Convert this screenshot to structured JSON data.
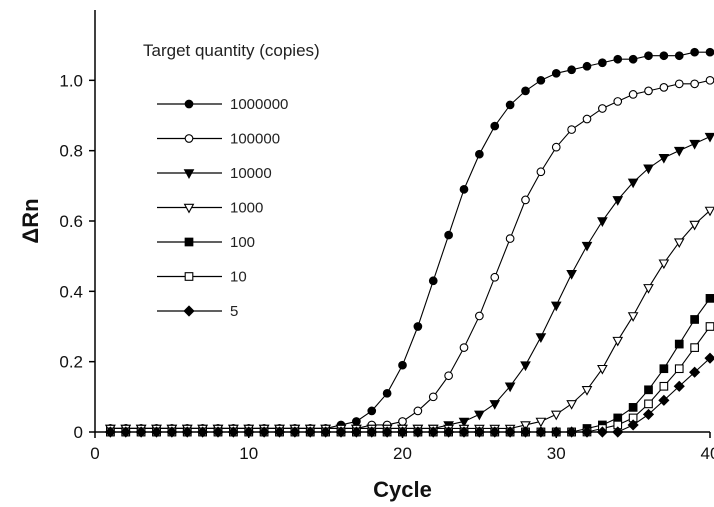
{
  "chart_data": {
    "type": "line",
    "title": "",
    "xlabel": "Cycle",
    "ylabel": "ΔRn",
    "xlim": [
      0,
      40
    ],
    "ylim": [
      0,
      1.2
    ],
    "x_ticks": [
      0,
      10,
      20,
      30,
      40
    ],
    "y_ticks": [
      0,
      0.2,
      0.4,
      0.6,
      0.8,
      1.0
    ],
    "x_tick_labels": [
      "0",
      "10",
      "20",
      "30",
      "40"
    ],
    "y_tick_labels": [
      "0",
      "0.2",
      "0.4",
      "0.6",
      "0.8",
      "1.0"
    ],
    "grid": false,
    "legend": {
      "title": "Target quantity (copies)",
      "placement": "top-left"
    },
    "x": [
      1,
      2,
      3,
      4,
      5,
      6,
      7,
      8,
      9,
      10,
      11,
      12,
      13,
      14,
      15,
      16,
      17,
      18,
      19,
      20,
      21,
      22,
      23,
      24,
      25,
      26,
      27,
      28,
      29,
      30,
      31,
      32,
      33,
      34,
      35,
      36,
      37,
      38,
      39,
      40
    ],
    "series": [
      {
        "name": "1000000",
        "marker": "circle-filled",
        "values": [
          0.01,
          0.01,
          0.01,
          0.01,
          0.01,
          0.01,
          0.01,
          0.01,
          0.01,
          0.01,
          0.01,
          0.01,
          0.01,
          0.01,
          0.01,
          0.02,
          0.03,
          0.06,
          0.11,
          0.19,
          0.3,
          0.43,
          0.56,
          0.69,
          0.79,
          0.87,
          0.93,
          0.97,
          1.0,
          1.02,
          1.03,
          1.04,
          1.05,
          1.06,
          1.06,
          1.07,
          1.07,
          1.07,
          1.08,
          1.08
        ]
      },
      {
        "name": "100000",
        "marker": "circle-open",
        "values": [
          0.01,
          0.01,
          0.01,
          0.01,
          0.01,
          0.01,
          0.01,
          0.01,
          0.01,
          0.01,
          0.01,
          0.01,
          0.01,
          0.01,
          0.01,
          0.01,
          0.01,
          0.02,
          0.02,
          0.03,
          0.06,
          0.1,
          0.16,
          0.24,
          0.33,
          0.44,
          0.55,
          0.66,
          0.74,
          0.81,
          0.86,
          0.89,
          0.92,
          0.94,
          0.96,
          0.97,
          0.98,
          0.99,
          0.99,
          1.0
        ]
      },
      {
        "name": "10000",
        "marker": "triangle-down-filled",
        "values": [
          0.01,
          0.01,
          0.01,
          0.01,
          0.01,
          0.01,
          0.01,
          0.01,
          0.01,
          0.01,
          0.01,
          0.01,
          0.01,
          0.01,
          0.01,
          0.01,
          0.01,
          0.01,
          0.01,
          0.01,
          0.01,
          0.01,
          0.02,
          0.03,
          0.05,
          0.08,
          0.13,
          0.19,
          0.27,
          0.36,
          0.45,
          0.53,
          0.6,
          0.66,
          0.71,
          0.75,
          0.78,
          0.8,
          0.82,
          0.84
        ]
      },
      {
        "name": "1000",
        "marker": "triangle-down-open",
        "values": [
          0.01,
          0.01,
          0.01,
          0.01,
          0.01,
          0.01,
          0.01,
          0.01,
          0.01,
          0.01,
          0.01,
          0.01,
          0.01,
          0.01,
          0.01,
          0.01,
          0.01,
          0.01,
          0.01,
          0.01,
          0.01,
          0.01,
          0.01,
          0.01,
          0.01,
          0.01,
          0.01,
          0.02,
          0.03,
          0.05,
          0.08,
          0.12,
          0.18,
          0.26,
          0.33,
          0.41,
          0.48,
          0.54,
          0.59,
          0.63
        ]
      },
      {
        "name": "100",
        "marker": "square-filled",
        "values": [
          0.0,
          0.0,
          0.0,
          0.0,
          0.0,
          0.0,
          0.0,
          0.0,
          0.0,
          0.0,
          0.0,
          0.0,
          0.0,
          0.0,
          0.0,
          0.0,
          0.0,
          0.0,
          0.0,
          0.0,
          0.0,
          0.0,
          0.0,
          0.0,
          0.0,
          0.0,
          0.0,
          0.0,
          0.0,
          0.0,
          0.0,
          0.01,
          0.02,
          0.04,
          0.07,
          0.12,
          0.18,
          0.25,
          0.32,
          0.38
        ]
      },
      {
        "name": "10",
        "marker": "square-open",
        "values": [
          0.0,
          0.0,
          0.0,
          0.0,
          0.0,
          0.0,
          0.0,
          0.0,
          0.0,
          0.0,
          0.0,
          0.0,
          0.0,
          0.0,
          0.0,
          0.0,
          0.0,
          0.0,
          0.0,
          0.0,
          0.0,
          0.0,
          0.0,
          0.0,
          0.0,
          0.0,
          0.0,
          0.0,
          0.0,
          0.0,
          0.0,
          0.0,
          0.01,
          0.02,
          0.04,
          0.08,
          0.13,
          0.18,
          0.24,
          0.3
        ]
      },
      {
        "name": "5",
        "marker": "diamond-filled",
        "values": [
          0.0,
          0.0,
          0.0,
          0.0,
          0.0,
          0.0,
          0.0,
          0.0,
          0.0,
          0.0,
          0.0,
          0.0,
          0.0,
          0.0,
          0.0,
          0.0,
          0.0,
          0.0,
          0.0,
          0.0,
          0.0,
          0.0,
          0.0,
          0.0,
          0.0,
          0.0,
          0.0,
          0.0,
          0.0,
          0.0,
          0.0,
          0.0,
          0.0,
          0.0,
          0.02,
          0.05,
          0.09,
          0.13,
          0.17,
          0.21
        ]
      }
    ]
  }
}
